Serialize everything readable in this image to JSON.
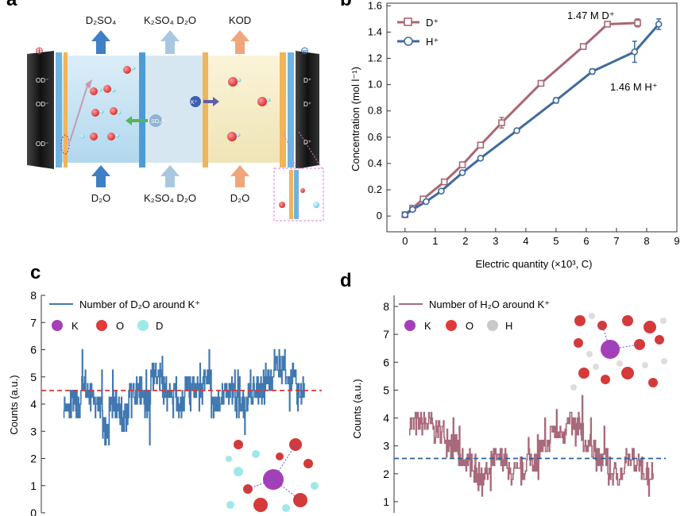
{
  "panels": {
    "a": {
      "letter": "a",
      "top_labels": [
        "D₂SO₄",
        "K₂SO₄ D₂O",
        "KOD"
      ],
      "bottom_labels": [
        "D₂O",
        "K₂SO₄ D₂O",
        "D₂O"
      ],
      "electrode_signs": [
        "⊕",
        "⊖"
      ],
      "ion_labels": {
        "od": "OD⁻",
        "dplus": "D⁺",
        "kplus": "K⁺",
        "so4": "SO₄²⁻"
      }
    },
    "b": {
      "letter": "b"
    },
    "c": {
      "letter": "c"
    },
    "d": {
      "letter": "d"
    }
  },
  "chart_data": [
    {
      "panel": "b",
      "type": "line",
      "xlabel": "Electric quantity (×10³, C)",
      "ylabel": "Concentration (mol l⁻¹)",
      "xlim": [
        -0.6,
        9
      ],
      "ylim": [
        -0.12,
        1.62
      ],
      "xticks": [
        0,
        1,
        2,
        3,
        4,
        5,
        6,
        7,
        8,
        9
      ],
      "yticks": [
        0,
        0.2,
        0.4,
        0.6,
        0.8,
        1.0,
        1.2,
        1.4,
        1.6
      ],
      "ytick_labels": [
        "0",
        "0.2",
        "0.4",
        "0.6",
        "0.8",
        "1.0",
        "1.2",
        "1.4",
        "1.6"
      ],
      "legend": "top-left",
      "series": [
        {
          "name": "D⁺",
          "color": "#a96674",
          "marker": "square",
          "x": [
            0,
            0.25,
            0.6,
            1.3,
            1.9,
            2.5,
            3.2,
            4.5,
            5.9,
            6.7,
            7.7
          ],
          "y": [
            0.01,
            0.06,
            0.13,
            0.26,
            0.39,
            0.54,
            0.71,
            1.01,
            1.29,
            1.46,
            1.47
          ],
          "err": [
            0.01,
            0.01,
            0.01,
            0.01,
            0.01,
            0.01,
            0.04,
            0.02,
            0.01,
            0.01,
            0.03
          ]
        },
        {
          "name": "H⁺",
          "color": "#3f6a9e",
          "marker": "circle",
          "x": [
            0,
            0.25,
            0.7,
            1.2,
            1.9,
            2.5,
            3.7,
            5.0,
            6.2,
            7.6,
            8.4
          ],
          "y": [
            0.01,
            0.05,
            0.11,
            0.19,
            0.33,
            0.44,
            0.65,
            0.88,
            1.1,
            1.25,
            1.46
          ],
          "err": [
            0.01,
            0.01,
            0.01,
            0.01,
            0.01,
            0.01,
            0.01,
            0.02,
            0.02,
            0.08,
            0.04
          ]
        }
      ],
      "annotations": [
        "1.47 M D⁺",
        "1.46 M H⁺"
      ]
    },
    {
      "panel": "c",
      "type": "line",
      "xlabel": "",
      "ylabel": "Counts (a.u.)",
      "ylim": [
        0,
        8
      ],
      "yticks": [
        0,
        1,
        2,
        3,
        4,
        5,
        6,
        7,
        8
      ],
      "legend": "top-left",
      "legend_entry": "Number of D₂O around K⁺",
      "species": [
        {
          "name": "K",
          "color": "#a43fb8"
        },
        {
          "name": "O",
          "color": "#e23a3a"
        },
        {
          "name": "D",
          "color": "#9ee8ea"
        }
      ],
      "line_color": "#3f78b0",
      "reference_line": {
        "value": 4.5,
        "color": "#d9373a"
      },
      "segments": [
        [
          4.0,
          40
        ],
        [
          4.5,
          30
        ],
        [
          4.0,
          20
        ],
        [
          3.0,
          15
        ],
        [
          4.0,
          25
        ],
        [
          3.5,
          20
        ],
        [
          4.5,
          30
        ],
        [
          4.0,
          20
        ],
        [
          5.0,
          25
        ],
        [
          4.5,
          35
        ],
        [
          4.0,
          20
        ],
        [
          4.5,
          40
        ],
        [
          5.0,
          20
        ],
        [
          4.0,
          25
        ],
        [
          4.5,
          30
        ],
        [
          4.0,
          30
        ],
        [
          4.5,
          40
        ],
        [
          5.0,
          20
        ],
        [
          5.5,
          25
        ],
        [
          5.0,
          25
        ],
        [
          4.5,
          20
        ]
      ],
      "noise_amplitude": 1.0,
      "seed": 11
    },
    {
      "panel": "d",
      "type": "line",
      "xlabel": "",
      "ylabel": "Counts (a.u.)",
      "ylim": [
        0.6,
        8.4
      ],
      "yticks": [
        1,
        2,
        3,
        4,
        5,
        6,
        7,
        8
      ],
      "legend": "top-left",
      "legend_entry": "Number of H₂O around K⁺",
      "species": [
        {
          "name": "K",
          "color": "#a43fb8"
        },
        {
          "name": "O",
          "color": "#e23a3a"
        },
        {
          "name": "H",
          "color": "#c9c9c9"
        }
      ],
      "line_color": "#a86a7a",
      "reference_line": {
        "value": 2.55,
        "color": "#2a5f9e"
      },
      "segments": [
        [
          3.8,
          40
        ],
        [
          3.5,
          20
        ],
        [
          3.0,
          20
        ],
        [
          2.5,
          30
        ],
        [
          2.0,
          25
        ],
        [
          2.5,
          25
        ],
        [
          2.0,
          30
        ],
        [
          2.5,
          20
        ],
        [
          3.0,
          20
        ],
        [
          3.5,
          25
        ],
        [
          3.8,
          30
        ],
        [
          3.0,
          20
        ],
        [
          2.5,
          20
        ],
        [
          2.0,
          30
        ],
        [
          2.5,
          25
        ],
        [
          2.0,
          20
        ]
      ],
      "noise_amplitude": 0.8,
      "seed": 7
    }
  ]
}
